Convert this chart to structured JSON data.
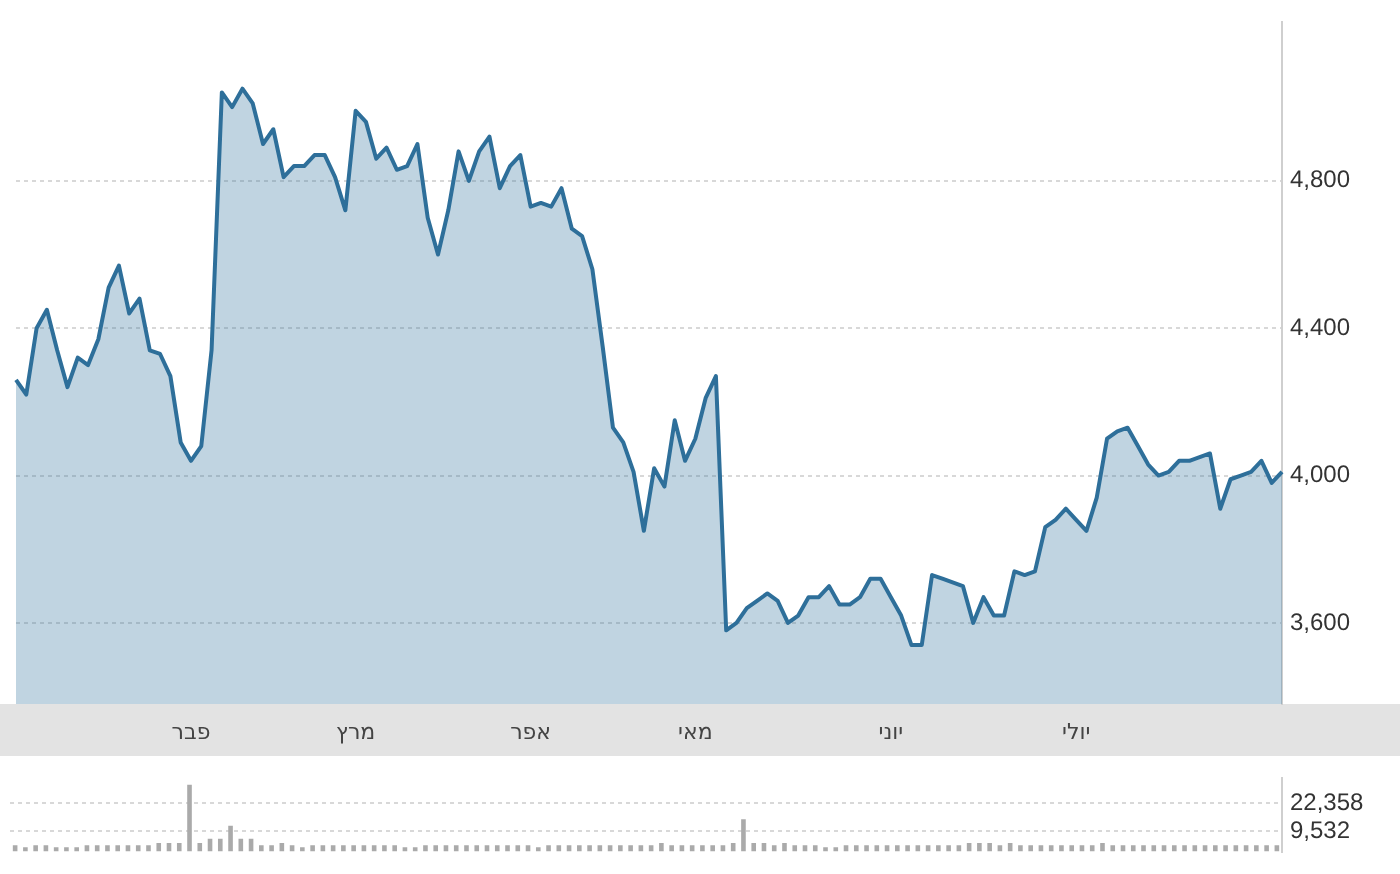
{
  "chart_data": [
    {
      "type": "area",
      "categories": [
        null,
        null,
        null,
        null,
        null,
        null,
        null,
        null,
        null,
        null,
        null,
        null,
        null,
        null,
        null,
        null,
        null,
        "פבר",
        null,
        null,
        null,
        null,
        null,
        null,
        null,
        null,
        null,
        null,
        null,
        null,
        null,
        null,
        null,
        "מרץ",
        null,
        null,
        null,
        null,
        null,
        null,
        null,
        null,
        null,
        null,
        null,
        null,
        null,
        null,
        null,
        null,
        "אפר",
        null,
        null,
        null,
        null,
        null,
        null,
        null,
        null,
        null,
        null,
        null,
        null,
        null,
        null,
        null,
        "מאי",
        null,
        null,
        null,
        null,
        null,
        null,
        null,
        null,
        null,
        null,
        null,
        null,
        null,
        null,
        null,
        null,
        null,
        null,
        "יוני",
        null,
        null,
        null,
        null,
        null,
        null,
        null,
        null,
        null,
        null,
        null,
        null,
        null,
        null,
        null,
        null,
        null,
        "יולי",
        null,
        null,
        null,
        null,
        null,
        null,
        null,
        null,
        null,
        null,
        null,
        null,
        null,
        null,
        null,
        null,
        null,
        null,
        null,
        null
      ],
      "series": [
        {
          "color": "#2e6f9a",
          "values": [
            4260,
            4220,
            4400,
            4450,
            4340,
            4240,
            4320,
            4300,
            4370,
            4510,
            4570,
            4440,
            4480,
            4340,
            4330,
            4270,
            4090,
            4040,
            4080,
            4340,
            5040,
            5000,
            5050,
            5010,
            4900,
            4940,
            4810,
            4840,
            4840,
            4870,
            4870,
            4810,
            4720,
            4990,
            4960,
            4860,
            4890,
            4830,
            4840,
            4900,
            4700,
            4600,
            4720,
            4880,
            4800,
            4880,
            4920,
            4780,
            4840,
            4870,
            4730,
            4740,
            4730,
            4780,
            4670,
            4650,
            4560,
            4350,
            4130,
            4090,
            4010,
            3850,
            4020,
            3970,
            4150,
            4040,
            4100,
            4210,
            4270,
            3580,
            3600,
            3640,
            3660,
            3680,
            3660,
            3600,
            3620,
            3670,
            3670,
            3700,
            3650,
            3650,
            3670,
            3720,
            3720,
            3670,
            3620,
            3540,
            3540,
            3730,
            3720,
            3710,
            3700,
            3600,
            3670,
            3620,
            3620,
            3740,
            3730,
            3740,
            3860,
            3880,
            3910,
            3880,
            3850,
            3940,
            4100,
            4120,
            4130,
            4080,
            4030,
            4000,
            4010,
            4040,
            4040,
            4050,
            4060,
            3910,
            3990,
            4000,
            4010,
            4040,
            3980,
            4010
          ]
        }
      ],
      "ylim": [
        3380,
        5230
      ],
      "yticks": [
        {
          "value": 3600,
          "label": "3,600"
        },
        {
          "value": 4000,
          "label": "4,000"
        },
        {
          "value": 4400,
          "label": "4,400"
        },
        {
          "value": 4800,
          "label": "4,800"
        }
      ],
      "grid": "y",
      "marker": "none"
    },
    {
      "type": "bar",
      "categories": [
        null,
        null,
        null,
        null,
        null,
        null,
        null,
        null,
        null,
        null,
        null,
        null,
        null,
        null,
        null,
        null,
        null,
        null,
        null,
        null,
        null,
        null,
        null,
        null,
        null,
        null,
        null,
        null,
        null,
        null,
        null,
        null,
        null,
        null,
        null,
        null,
        null,
        null,
        null,
        null,
        null,
        null,
        null,
        null,
        null,
        null,
        null,
        null,
        null,
        null,
        null,
        null,
        null,
        null,
        null,
        null,
        null,
        null,
        null,
        null,
        null,
        null,
        null,
        null,
        null,
        null,
        null,
        null,
        null,
        null,
        null,
        null,
        null,
        null,
        null,
        null,
        null,
        null,
        null,
        null,
        null,
        null,
        null,
        null,
        null,
        null,
        null,
        null,
        null,
        null,
        null,
        null,
        null,
        null,
        null,
        null,
        null,
        null,
        null,
        null,
        null,
        null,
        null,
        null,
        null,
        null,
        null,
        null,
        null,
        null,
        null,
        null,
        null,
        null,
        null,
        null,
        null,
        null,
        null,
        null,
        null,
        null,
        null,
        null
      ],
      "series": [
        {
          "color": "#aaaaaa",
          "values": [
            3000,
            2000,
            3000,
            3000,
            2000,
            2000,
            2000,
            3000,
            3000,
            3000,
            3000,
            3000,
            3000,
            3000,
            4000,
            4000,
            4000,
            31000,
            4000,
            6000,
            6000,
            12000,
            6000,
            6000,
            3000,
            3000,
            4000,
            3000,
            2000,
            3000,
            3000,
            3000,
            3000,
            3000,
            3000,
            3000,
            3000,
            3000,
            2000,
            2000,
            3000,
            3000,
            3000,
            3000,
            3000,
            3000,
            3000,
            3000,
            3000,
            3000,
            3000,
            2000,
            3000,
            3000,
            3000,
            3000,
            3000,
            3000,
            3000,
            3000,
            3000,
            3000,
            3000,
            4000,
            3000,
            3000,
            3000,
            3000,
            3000,
            3000,
            4000,
            15000,
            4000,
            4000,
            3000,
            4000,
            3000,
            3000,
            3000,
            2000,
            2000,
            3000,
            3000,
            3000,
            3000,
            3000,
            3000,
            3000,
            3000,
            3000,
            3000,
            3000,
            3000,
            4000,
            4000,
            4000,
            3000,
            4000,
            3000,
            3000,
            3000,
            3000,
            3000,
            3000,
            3000,
            3000,
            4000,
            3000,
            3000,
            3000,
            3000,
            3000,
            3000,
            3000,
            3000,
            3000,
            3000,
            3000,
            3000,
            3000,
            3000,
            3000,
            3000,
            3000
          ]
        }
      ],
      "ylim": [
        0,
        34000
      ],
      "yticks": [
        {
          "value": 9532,
          "label": "9,532"
        },
        {
          "value": 22358,
          "label": "22,358"
        }
      ],
      "grid": "y"
    }
  ]
}
